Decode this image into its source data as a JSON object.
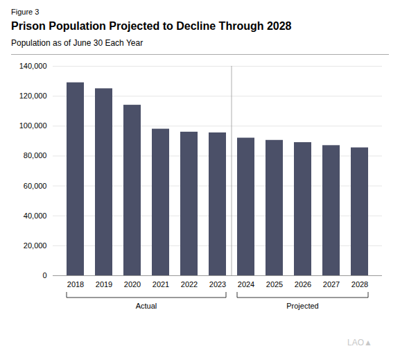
{
  "chart_data": {
    "type": "bar",
    "figure_label": "Figure 3",
    "title": "Prison Population Projected to Decline Through 2028",
    "subtitle": "Population as of June 30 Each Year",
    "categories": [
      "2018",
      "2019",
      "2020",
      "2021",
      "2022",
      "2023",
      "2024",
      "2025",
      "2026",
      "2027",
      "2028"
    ],
    "values": [
      129000,
      125000,
      114000,
      98000,
      96000,
      95500,
      92000,
      90500,
      89000,
      87000,
      85500
    ],
    "color": "#4b5068",
    "ylim": [
      0,
      140000
    ],
    "yticks": [
      0,
      {
        "value": 20000,
        "label": "20,000"
      },
      {
        "value": 40000,
        "label": "40,000"
      },
      {
        "value": 60000,
        "label": "60,000"
      },
      {
        "value": 80000,
        "label": "80,000"
      },
      {
        "value": 100000,
        "label": "100,000"
      },
      {
        "value": 120000,
        "label": "120,000"
      },
      {
        "value": 140000,
        "label": "140,000"
      }
    ],
    "grid": true,
    "annotations": [
      {
        "text": "Actual",
        "categories": [
          "2018",
          "2023"
        ]
      },
      {
        "text": "Projected",
        "categories": [
          "2024",
          "2028"
        ]
      }
    ],
    "watermark": "LAO▲"
  }
}
